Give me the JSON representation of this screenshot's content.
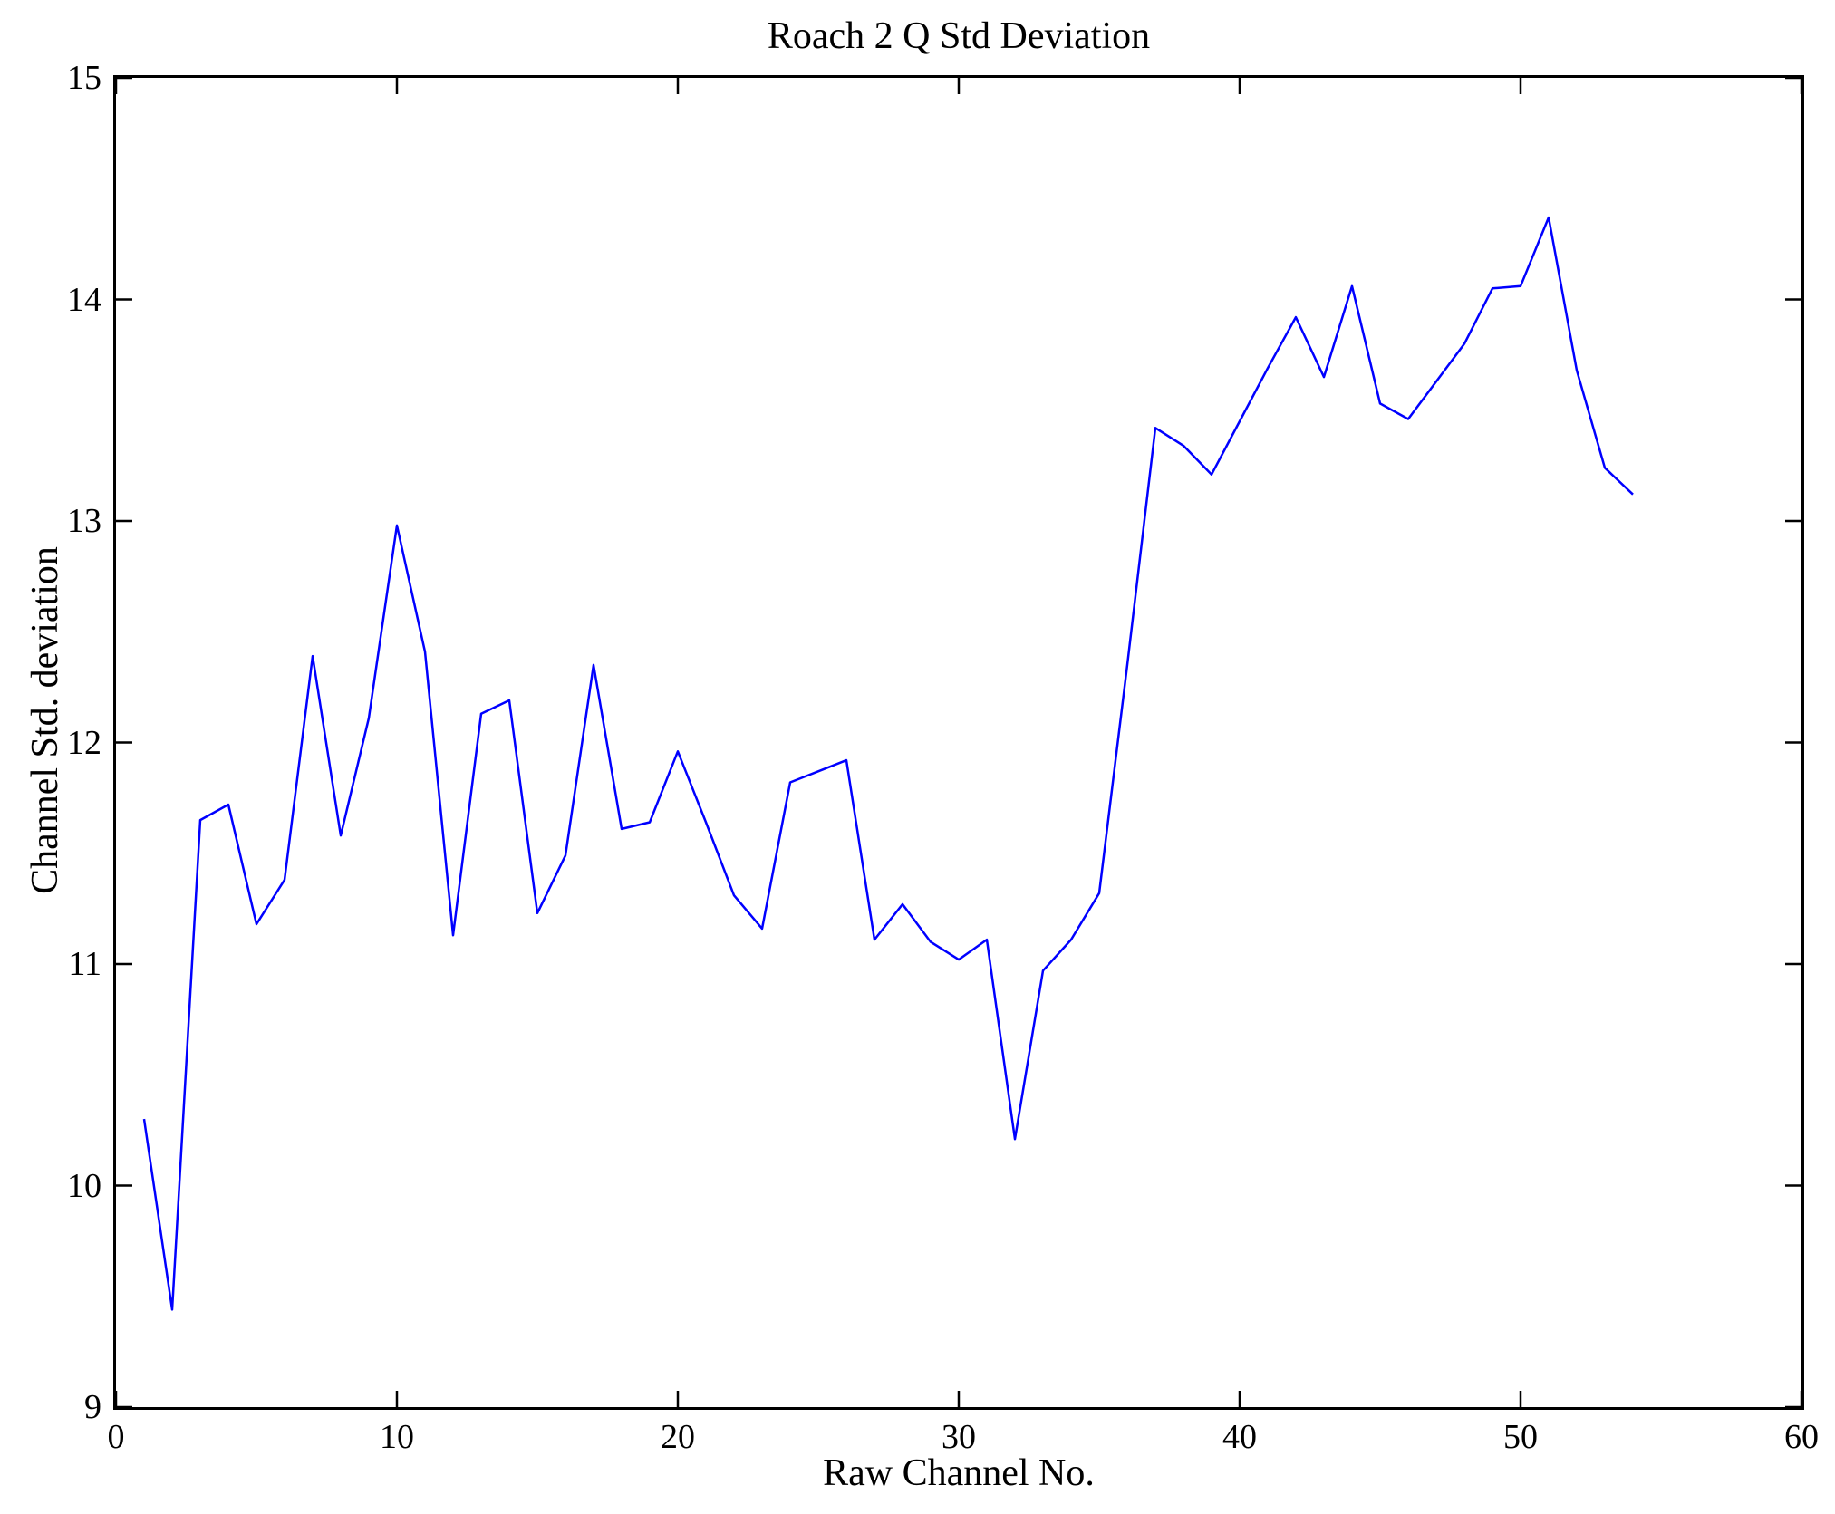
{
  "chart_data": {
    "type": "line",
    "title": "Roach 2 Q Std Deviation",
    "xlabel": "Raw Channel No.",
    "ylabel": "Channel Std. deviation",
    "xlim": [
      0,
      60
    ],
    "ylim": [
      9,
      15
    ],
    "xticks": [
      0,
      10,
      20,
      30,
      40,
      50,
      60
    ],
    "yticks": [
      9,
      10,
      11,
      12,
      13,
      14,
      15
    ],
    "grid": false,
    "legend": "none",
    "box": true,
    "tick_direction": "in",
    "line_color": "#0000FF",
    "axis_color": "#000000",
    "background_color": "#FFFFFF",
    "series_name": "Channel Std. deviation",
    "x": [
      1,
      2,
      3,
      4,
      5,
      6,
      7,
      8,
      9,
      10,
      11,
      12,
      13,
      14,
      15,
      16,
      17,
      18,
      19,
      20,
      21,
      22,
      23,
      24,
      25,
      26,
      27,
      28,
      29,
      30,
      31,
      32,
      33,
      34,
      35,
      36,
      37,
      38,
      39,
      40,
      41,
      42,
      43,
      44,
      45,
      46,
      47,
      48,
      49,
      50,
      51,
      52,
      53,
      54
    ],
    "values": [
      10.3,
      9.44,
      11.65,
      11.72,
      11.18,
      11.38,
      12.39,
      11.58,
      12.11,
      12.98,
      12.41,
      11.13,
      12.13,
      12.19,
      11.23,
      11.49,
      12.35,
      11.61,
      11.64,
      11.96,
      11.64,
      11.31,
      11.16,
      11.82,
      11.87,
      11.92,
      11.11,
      11.27,
      11.1,
      11.02,
      11.11,
      10.21,
      10.97,
      11.11,
      11.32,
      12.35,
      13.42,
      13.34,
      13.21,
      13.45,
      13.69,
      13.92,
      13.65,
      14.06,
      13.53,
      13.46,
      13.63,
      13.8,
      14.05,
      14.06,
      14.37,
      13.68,
      13.24,
      13.12
    ]
  }
}
